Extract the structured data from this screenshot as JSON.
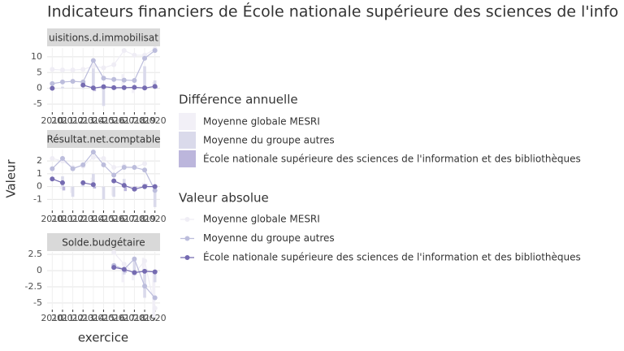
{
  "chart_data": {
    "title": "Indicateurs financiers de École nationale supérieure des sciences de l'info",
    "x_label": "exercice",
    "y_label": "Valeur",
    "legend": {
      "diff_title": "Différence annuelle",
      "abs_title": "Valeur absolue"
    },
    "panels": [
      {
        "type": "line",
        "title": "uisitions.d.immobilisat",
        "x": [
          2010,
          2011,
          2012,
          2013,
          2014,
          2015,
          2016,
          2017,
          2018,
          2019,
          2020
        ],
        "xlim": [
          2009.5,
          2020.5
        ],
        "xticks": [
          2010,
          2011,
          2012,
          2013,
          2014,
          2015,
          2016,
          2017,
          2018,
          2019,
          2020
        ],
        "ylim": [
          -7.3,
          12.8
        ],
        "yticks": [
          -5,
          0,
          5,
          10
        ],
        "series": [
          {
            "name": "Moyenne globale MESRI",
            "color": "#efedf5",
            "values": [
              6,
              5.8,
              5.8,
              6,
              7,
              6.5,
              7.5,
              12,
              10.5,
              10.5,
              12.5
            ]
          },
          {
            "name": "Moyenne du groupe autres",
            "color": "#bcbddc",
            "values": [
              1.5,
              2,
              2.2,
              2,
              8.8,
              3.2,
              2.8,
              2.6,
              2.5,
              9.5,
              12
            ]
          },
          {
            "name": "École nationale supérieure des sciences de l'information et des bibliothèques",
            "color": "#756bb1",
            "values": [
              0,
              null,
              null,
              1,
              0.1,
              0.5,
              0.2,
              0.2,
              0.3,
              0.1,
              0.6
            ]
          }
        ],
        "diff_series": [
          {
            "name": "Moyenne globale MESRI",
            "color": "#f2f0f7",
            "values": [
              null,
              -0.2,
              0,
              0.2,
              1,
              -0.5,
              1,
              4.5,
              -1.5,
              0,
              2
            ]
          },
          {
            "name": "Moyenne du groupe autres",
            "color": "#dadaeb",
            "values": [
              null,
              0.5,
              0.2,
              -0.2,
              6.8,
              -5.6,
              -0.4,
              -0.2,
              -0.1,
              7,
              2.5
            ]
          },
          {
            "name": "École nationale supérieure des sciences de l'information et des bibliothèques",
            "color": "#bcb6dc",
            "values": [
              null,
              null,
              null,
              null,
              -0.9,
              0.4,
              -0.3,
              0,
              0.1,
              -0.2,
              0.5
            ]
          }
        ]
      },
      {
        "type": "line",
        "title": "Résultat.net.comptable",
        "x": [
          2010,
          2011,
          2012,
          2013,
          2014,
          2015,
          2016,
          2017,
          2018,
          2019,
          2020
        ],
        "xlim": [
          2009.5,
          2020.5
        ],
        "xticks": [
          2010,
          2011,
          2012,
          2013,
          2014,
          2015,
          2016,
          2017,
          2018,
          2019,
          2020
        ],
        "ylim": [
          -1.8,
          2.9
        ],
        "yticks": [
          -1,
          0,
          1,
          2
        ],
        "series": [
          {
            "color": "#efedf5",
            "values": [
              2.2,
              2,
              1.5,
              1.6,
              2.3,
              2.2,
              1.5,
              1.6,
              1.5,
              1.8,
              null
            ]
          },
          {
            "color": "#bcbddc",
            "values": [
              1.4,
              2.2,
              1.4,
              1.7,
              2.7,
              1.7,
              0.9,
              1.5,
              1.5,
              1.3,
              -0.3
            ]
          },
          {
            "color": "#756bb1",
            "values": [
              0.6,
              0.3,
              null,
              0.3,
              0.15,
              null,
              0.45,
              0.1,
              -0.2,
              0,
              0
            ]
          }
        ],
        "diff_series": [
          {
            "color": "#f2f0f7",
            "values": [
              null,
              -0.2,
              -0.5,
              0.1,
              0.7,
              -0.1,
              -0.7,
              0.1,
              -0.1,
              0.3,
              null
            ]
          },
          {
            "color": "#dadaeb",
            "values": [
              null,
              0.8,
              -0.8,
              0.3,
              1,
              -1,
              -0.8,
              0.6,
              0,
              -0.2,
              -1.6
            ]
          },
          {
            "color": "#bcb6dc",
            "values": [
              null,
              -0.3,
              null,
              null,
              -0.15,
              null,
              null,
              -0.35,
              -0.3,
              0.2,
              0
            ]
          }
        ]
      },
      {
        "type": "line",
        "title": "Solde.budgétaire",
        "x": [
          2016,
          2017,
          2018,
          2019,
          2020
        ],
        "xlim": [
          2009.5,
          2020.5
        ],
        "xticks": [
          2010,
          2011,
          2012,
          2013,
          2014,
          2015,
          2016,
          2017,
          2018,
          2019,
          2020
        ],
        "ylim": [
          -5.9,
          2.9
        ],
        "yticks": [
          -5,
          -2.5,
          0,
          2.5
        ],
        "series": [
          {
            "color": "#efedf5",
            "values": [
              2.8,
              1,
              -0.5,
              1.5,
              -5.8
            ]
          },
          {
            "color": "#bcbddc",
            "values": [
              0.8,
              0.2,
              1.8,
              -2.4,
              -4.2
            ]
          },
          {
            "color": "#756bb1",
            "values": [
              0.5,
              0.2,
              -0.3,
              -0.1,
              -0.2
            ]
          }
        ],
        "diff_series": [
          {
            "color": "#f2f0f7",
            "values": [
              null,
              -1.8,
              -1.5,
              2,
              -7.3
            ]
          },
          {
            "color": "#dadaeb",
            "values": [
              null,
              -0.6,
              1.6,
              -4.2,
              -1.8
            ]
          },
          {
            "color": "#bcb6dc",
            "values": [
              null,
              -0.3,
              -0.5,
              0.2,
              -0.1
            ]
          }
        ]
      }
    ]
  }
}
